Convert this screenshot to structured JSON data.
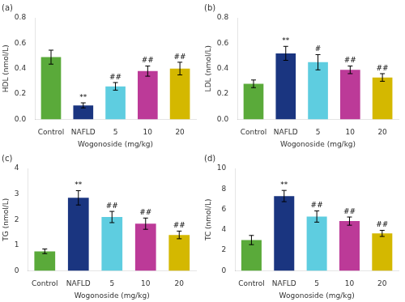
{
  "chart_data": [
    {
      "type": "bar",
      "title": "(a)",
      "ylabel": "HDL (nmol/L)",
      "xlabel": "Wogonoside (mg/kg)",
      "categories": [
        "Control",
        "NAFLD",
        "5",
        "10",
        "20"
      ],
      "values": [
        0.49,
        0.11,
        0.26,
        0.38,
        0.4
      ],
      "errors": [
        0.055,
        0.02,
        0.03,
        0.04,
        0.05
      ],
      "colors": [
        "#5aaa3a",
        "#1a3580",
        "#5ecde0",
        "#bc3a98",
        "#d4b800"
      ],
      "annotations": [
        null,
        "**",
        "##",
        "##",
        "##"
      ],
      "ylim": [
        0,
        0.8
      ],
      "yticks": [
        {
          "value": 0,
          "label": "0.0"
        },
        0.2,
        0.4,
        0.6,
        0.8
      ],
      "grid": false
    },
    {
      "type": "bar",
      "title": "(b)",
      "ylabel": "LDL (nmol/L)",
      "xlabel": "Wogonoside (mg/kg)",
      "categories": [
        "Control",
        "NAFLD",
        "5",
        "10",
        "20"
      ],
      "values": [
        0.28,
        0.52,
        0.45,
        0.39,
        0.33
      ],
      "errors": [
        0.03,
        0.055,
        0.06,
        0.03,
        0.03
      ],
      "colors": [
        "#5aaa3a",
        "#1a3580",
        "#5ecde0",
        "#bc3a98",
        "#d4b800"
      ],
      "annotations": [
        null,
        "**",
        "#",
        "##",
        "##"
      ],
      "ylim": [
        0,
        0.8
      ],
      "yticks": [
        {
          "value": 0,
          "label": "0.0"
        },
        0.2,
        0.4,
        0.6,
        0.8
      ],
      "grid": false
    },
    {
      "type": "bar",
      "title": "(c)",
      "ylabel": "TG (nmol/L)",
      "xlabel": "Wogonoside (mg/kg)",
      "categories": [
        "Control",
        "NAFLD",
        "5",
        "10",
        "20"
      ],
      "values": [
        0.76,
        2.85,
        2.1,
        1.84,
        1.4
      ],
      "errors": [
        0.09,
        0.28,
        0.22,
        0.22,
        0.15
      ],
      "colors": [
        "#5aaa3a",
        "#1a3580",
        "#5ecde0",
        "#bc3a98",
        "#d4b800"
      ],
      "annotations": [
        null,
        "**",
        "##",
        "##",
        "##"
      ],
      "ylim": [
        0,
        4
      ],
      "yticks": [
        0,
        1,
        2,
        3,
        4
      ],
      "grid": false
    },
    {
      "type": "bar",
      "title": "(d)",
      "ylabel": "TC (nmol/L)",
      "xlabel": "Wogonoside (mg/kg)",
      "categories": [
        "Control",
        "NAFLD",
        "5",
        "10",
        "20"
      ],
      "values": [
        3.0,
        7.3,
        5.3,
        4.85,
        3.65
      ],
      "errors": [
        0.45,
        0.55,
        0.55,
        0.4,
        0.3
      ],
      "colors": [
        "#5aaa3a",
        "#1a3580",
        "#5ecde0",
        "#bc3a98",
        "#d4b800"
      ],
      "annotations": [
        null,
        "**",
        "##",
        "##",
        "##"
      ],
      "ylim": [
        0,
        10
      ],
      "yticks": [
        0,
        2,
        4,
        6,
        8,
        10
      ],
      "grid": false
    }
  ]
}
